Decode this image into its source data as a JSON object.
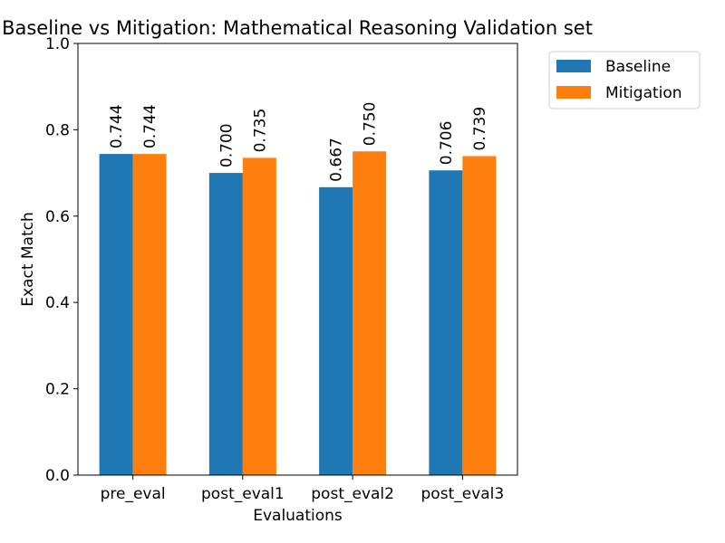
{
  "chart_data": {
    "type": "bar",
    "title": "Baseline vs Mitigation: Mathematical Reasoning Validation set",
    "xlabel": "Evaluations",
    "ylabel": "Exact Match",
    "categories": [
      "pre_eval",
      "post_eval1",
      "post_eval2",
      "post_eval3"
    ],
    "series": [
      {
        "name": "Baseline",
        "color": "#1f77b4",
        "values": [
          0.744,
          0.7,
          0.667,
          0.706
        ],
        "labels": [
          "0.744",
          "0.700",
          "0.667",
          "0.706"
        ]
      },
      {
        "name": "Mitigation",
        "color": "#ff7f0e",
        "values": [
          0.744,
          0.735,
          0.75,
          0.739
        ],
        "labels": [
          "0.744",
          "0.735",
          "0.750",
          "0.739"
        ]
      }
    ],
    "ylim": [
      0,
      1.0
    ],
    "yticks": [
      "0.0",
      "0.2",
      "0.4",
      "0.6",
      "0.8",
      "1.0"
    ],
    "grid": false,
    "legend_position": "outside-top-right"
  }
}
